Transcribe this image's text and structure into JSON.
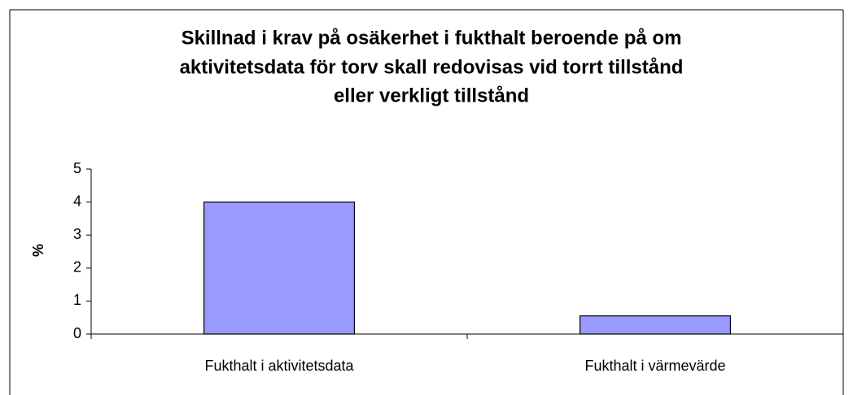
{
  "chart_data": {
    "type": "bar",
    "title": [
      "Skillnad i krav på osäkerhet i fukthalt beroende på om",
      "aktivitetsdata för torv skall redovisas vid torrt tillstånd",
      "eller verkligt tillstånd"
    ],
    "y_label": "%",
    "categories": [
      "Fukthalt i aktivitetsdata",
      "Fukthalt i värmevärde"
    ],
    "values": [
      4,
      0.55
    ],
    "color": "#9999ff",
    "ylim": [
      0,
      5
    ],
    "yticks": [
      0,
      1,
      2,
      3,
      4,
      5
    ],
    "grid": false
  }
}
